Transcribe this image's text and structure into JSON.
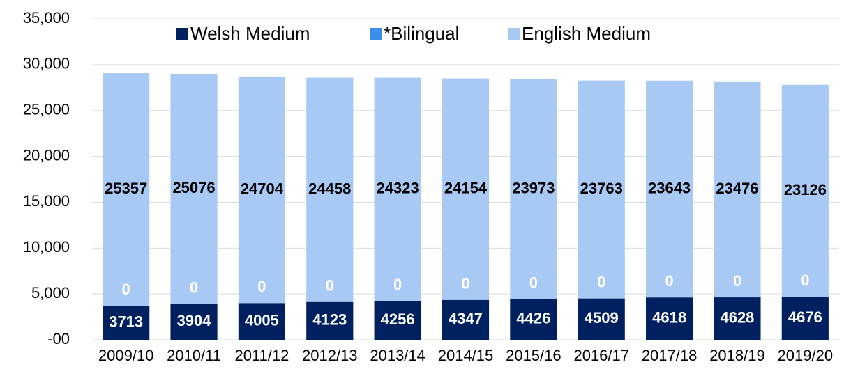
{
  "chart_data": {
    "type": "stacked_bar",
    "categories": [
      "2009/10",
      "2010/11",
      "2011/12",
      "2012/13",
      "2013/14",
      "2014/15",
      "2015/16",
      "2016/17",
      "2017/18",
      "2018/19",
      "2019/20"
    ],
    "series": [
      {
        "name": "Welsh Medium",
        "color": "#002060",
        "label_color": "#ffffff",
        "values": [
          3713,
          3904,
          4005,
          4123,
          4256,
          4347,
          4426,
          4509,
          4618,
          4628,
          4676
        ]
      },
      {
        "name": "*Bilingual",
        "color": "#3b8eea",
        "label_color": "#ffffff",
        "values": [
          0,
          0,
          0,
          0,
          0,
          0,
          0,
          0,
          0,
          0,
          0
        ]
      },
      {
        "name": "English Medium",
        "color": "#a9c9f5",
        "label_color": "#000000",
        "values": [
          25357,
          25076,
          24704,
          24458,
          24323,
          24154,
          23973,
          23763,
          23643,
          23476,
          23126
        ]
      }
    ],
    "ylim": [
      0,
      35000
    ],
    "yticks": [
      {
        "value": 0,
        "label": "-00"
      },
      {
        "value": 5000,
        "label": "5,000"
      },
      {
        "value": 10000,
        "label": "10,000"
      },
      {
        "value": 15000,
        "label": "15,000"
      },
      {
        "value": 20000,
        "label": "20,000"
      },
      {
        "value": 25000,
        "label": "25,000"
      },
      {
        "value": 30000,
        "label": "30,000"
      },
      {
        "value": 35000,
        "label": "35,000"
      }
    ],
    "grid": true,
    "legend": "top"
  }
}
